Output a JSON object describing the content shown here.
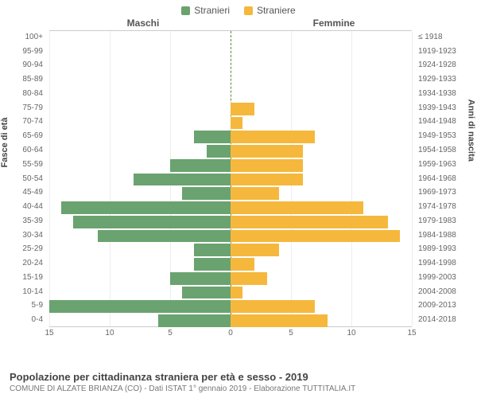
{
  "legend": {
    "male": {
      "label": "Stranieri",
      "color": "#6aa36f"
    },
    "female": {
      "label": "Straniere",
      "color": "#f5b83d"
    }
  },
  "headers": {
    "left": "Maschi",
    "right": "Femmine"
  },
  "axis_titles": {
    "left": "Fasce di età",
    "right": "Anni di nascita"
  },
  "title": "Popolazione per cittadinanza straniera per età e sesso - 2019",
  "subtitle": "COMUNE DI ALZATE BRIANZA (CO) - Dati ISTAT 1° gennaio 2019 - Elaborazione TUTTITALIA.IT",
  "chart": {
    "type": "population-pyramid",
    "xmax": 15,
    "xtick_step": 5,
    "xticks_left": [
      15,
      10,
      5,
      0
    ],
    "xticks_right": [
      0,
      5,
      10,
      15
    ],
    "bar_color_male": "#6aa36f",
    "bar_color_female": "#f5b83d",
    "background_color": "#ffffff",
    "grid_color": "#eeeeee",
    "center_line_color": "#5a8a3a",
    "label_fontsize": 10,
    "rows": [
      {
        "age": "100+",
        "birth": "≤ 1918",
        "m": 0,
        "f": 0
      },
      {
        "age": "95-99",
        "birth": "1919-1923",
        "m": 0,
        "f": 0
      },
      {
        "age": "90-94",
        "birth": "1924-1928",
        "m": 0,
        "f": 0
      },
      {
        "age": "85-89",
        "birth": "1929-1933",
        "m": 0,
        "f": 0
      },
      {
        "age": "80-84",
        "birth": "1934-1938",
        "m": 0,
        "f": 0
      },
      {
        "age": "75-79",
        "birth": "1939-1943",
        "m": 0,
        "f": 2
      },
      {
        "age": "70-74",
        "birth": "1944-1948",
        "m": 0,
        "f": 1
      },
      {
        "age": "65-69",
        "birth": "1949-1953",
        "m": 3,
        "f": 7
      },
      {
        "age": "60-64",
        "birth": "1954-1958",
        "m": 2,
        "f": 6
      },
      {
        "age": "55-59",
        "birth": "1959-1963",
        "m": 5,
        "f": 6
      },
      {
        "age": "50-54",
        "birth": "1964-1968",
        "m": 8,
        "f": 6
      },
      {
        "age": "45-49",
        "birth": "1969-1973",
        "m": 4,
        "f": 4
      },
      {
        "age": "40-44",
        "birth": "1974-1978",
        "m": 14,
        "f": 11
      },
      {
        "age": "35-39",
        "birth": "1979-1983",
        "m": 13,
        "f": 13
      },
      {
        "age": "30-34",
        "birth": "1984-1988",
        "m": 11,
        "f": 14
      },
      {
        "age": "25-29",
        "birth": "1989-1993",
        "m": 3,
        "f": 4
      },
      {
        "age": "20-24",
        "birth": "1994-1998",
        "m": 3,
        "f": 2
      },
      {
        "age": "15-19",
        "birth": "1999-2003",
        "m": 5,
        "f": 3
      },
      {
        "age": "10-14",
        "birth": "2004-2008",
        "m": 4,
        "f": 1
      },
      {
        "age": "5-9",
        "birth": "2009-2013",
        "m": 15,
        "f": 7
      },
      {
        "age": "0-4",
        "birth": "2014-2018",
        "m": 6,
        "f": 8
      }
    ]
  }
}
